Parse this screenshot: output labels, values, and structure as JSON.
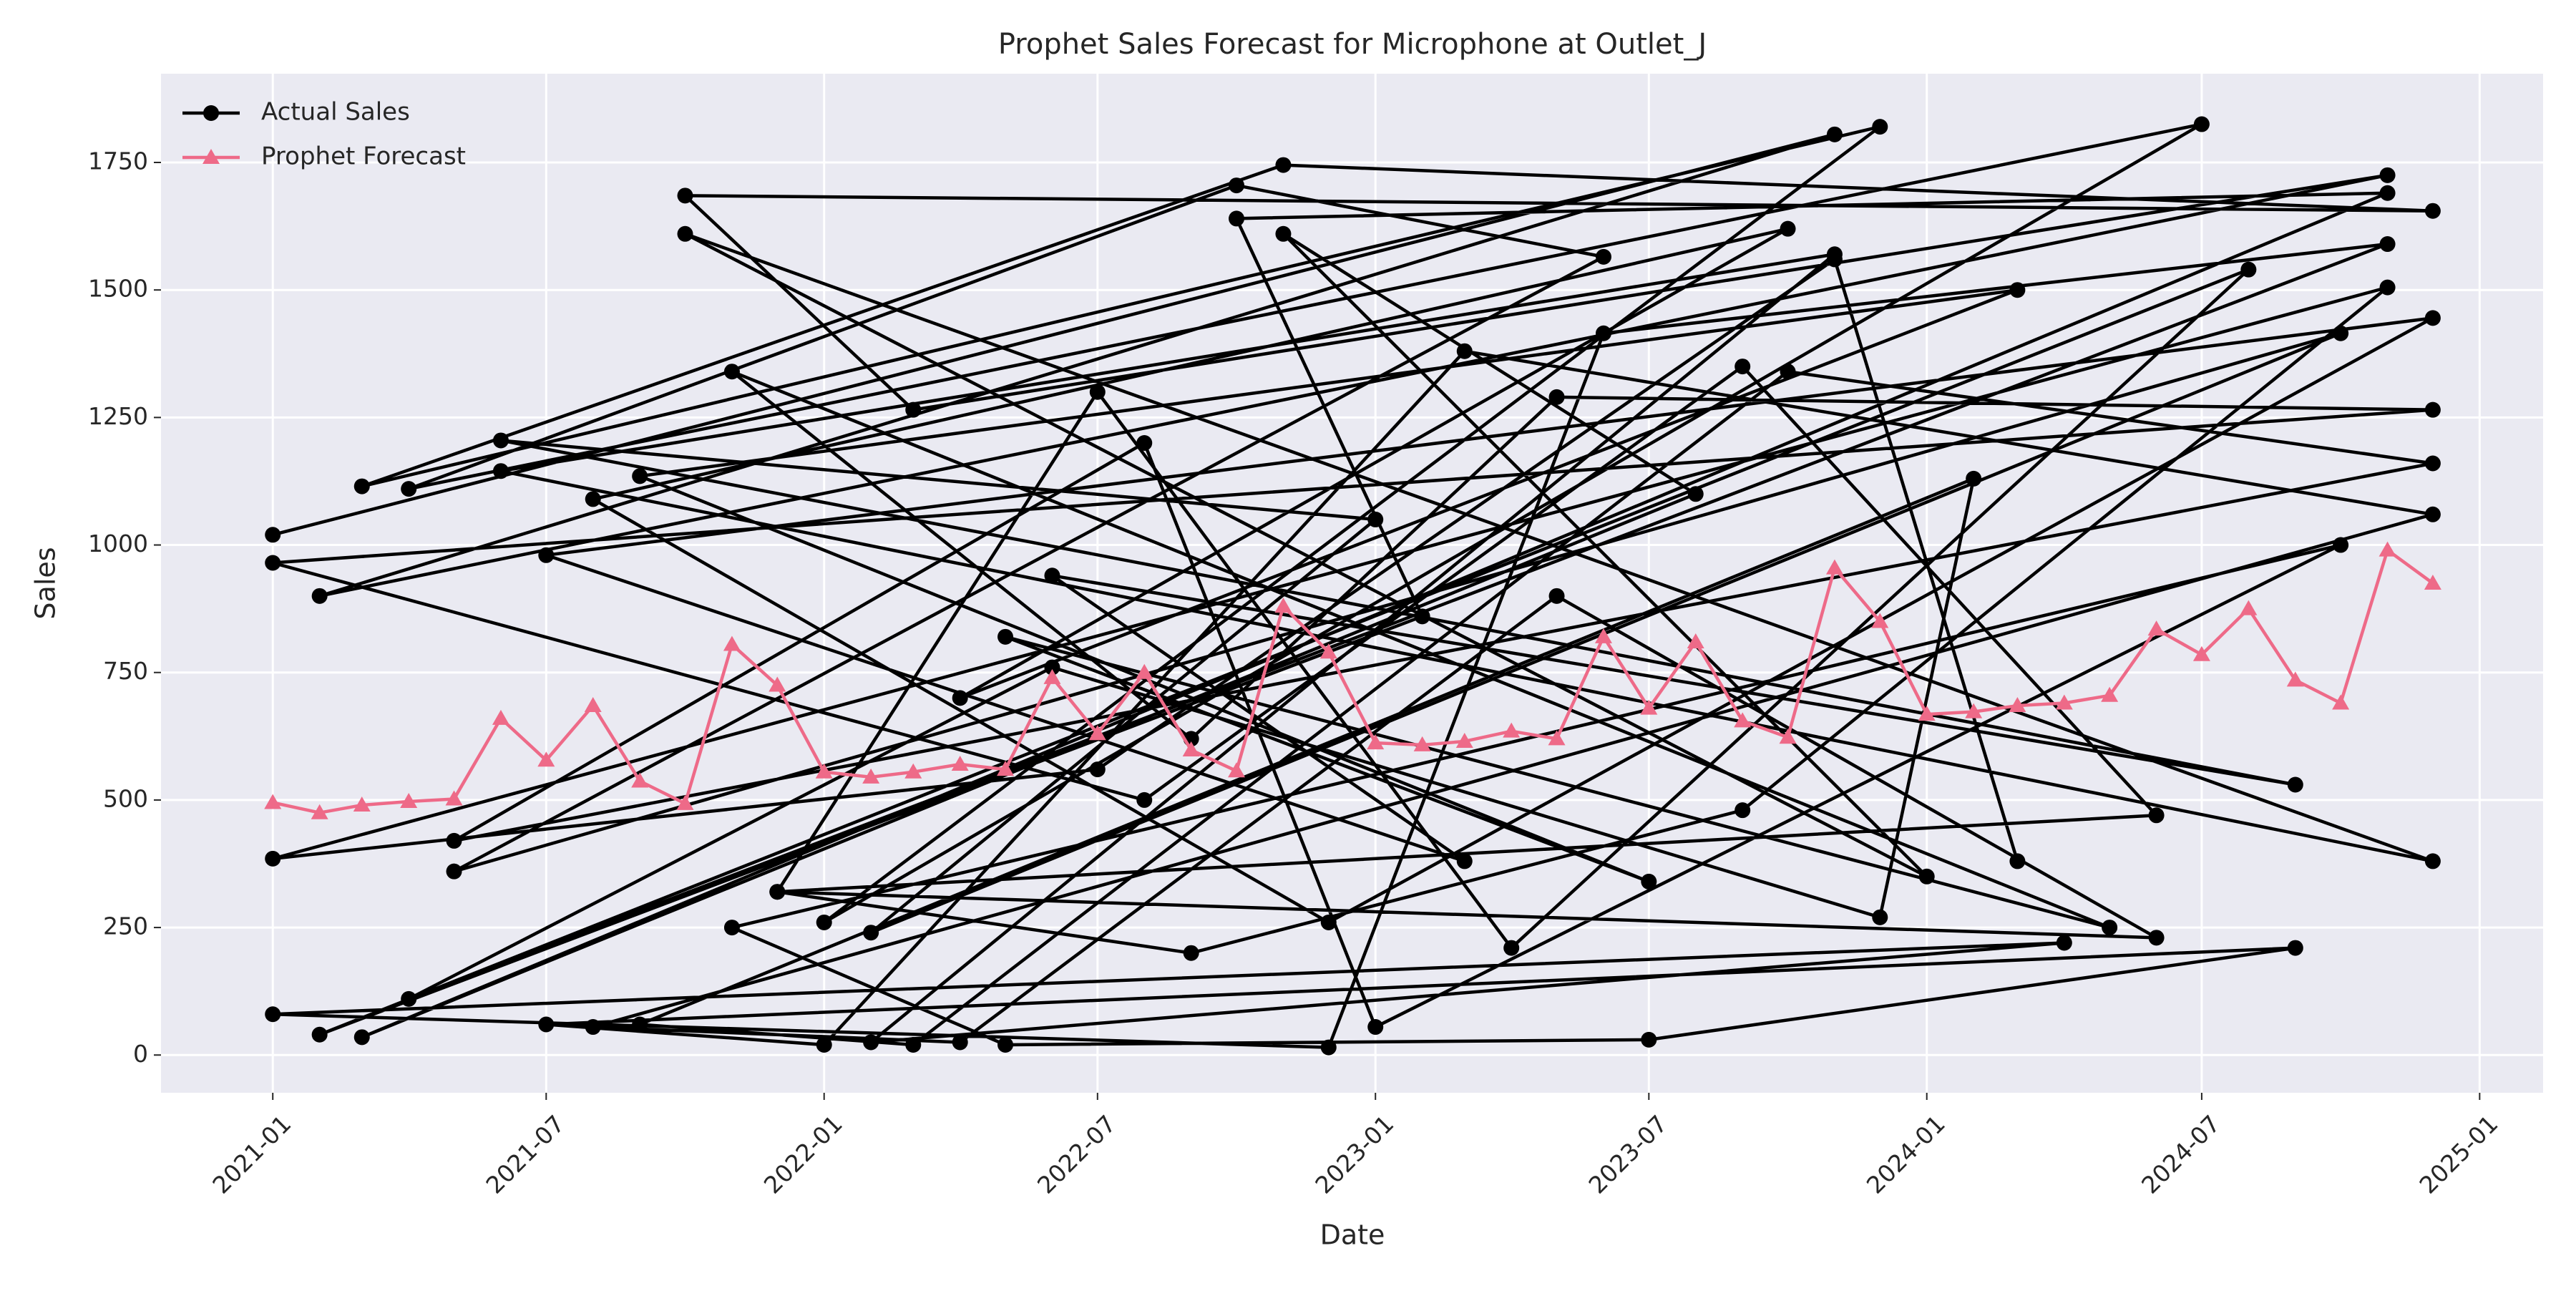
{
  "chart_data": {
    "type": "line",
    "title": "Prophet Sales Forecast for Microphone at Outlet_J",
    "x_label": "Date",
    "y_label": "Sales",
    "xlim": [
      "2020-10-19",
      "2025-02-12"
    ],
    "xticks": [
      "2021-01",
      "2021-07",
      "2022-01",
      "2022-07",
      "2023-01",
      "2023-07",
      "2024-01",
      "2024-07",
      "2025-01"
    ],
    "ylim": [
      -74,
      1924
    ],
    "yticks": [
      0,
      250,
      500,
      750,
      1000,
      1250,
      1500,
      1750
    ],
    "grid": true,
    "legend": "upper left",
    "series": [
      {
        "name": "Actual Sales",
        "color": "#000000",
        "marker": "circle",
        "x": [
          "2021-01",
          "2023-11",
          "2021-02",
          "2024-11",
          "2022-03",
          "2021-10",
          "2024-12",
          "2022-11",
          "2021-03",
          "2023-12",
          "2022-01",
          "2024-07",
          "2021-04",
          "2022-10",
          "2023-06",
          "2021-05",
          "2024-10",
          "2022-02",
          "2023-01",
          "2021-06",
          "2024-09",
          "2022-06",
          "2023-03",
          "2021-07",
          "2024-12",
          "2022-12",
          "2021-08",
          "2023-10",
          "2022-04",
          "2024-03",
          "2021-09",
          "2023-07",
          "2022-05",
          "2024-05",
          "2021-11",
          "2022-09",
          "2023-05",
          "2024-12",
          "2021-01",
          "2022-08",
          "2023-09",
          "2024-06",
          "2021-12",
          "2022-07",
          "2023-04",
          "2024-08",
          "2021-02",
          "2023-02",
          "2022-10",
          "2024-11",
          "2021-03",
          "2023-08",
          "2022-11",
          "2024-01",
          "2021-10",
          "2024-12",
          "2021-06",
          "2023-11",
          "2022-02",
          "2024-04",
          "2021-01",
          "2022-12",
          "2023-06",
          "2024-11",
          "2021-04",
          "2022-06",
          "2023-12",
          "2024-02",
          "2021-09",
          "2022-03",
          "2023-10",
          "2024-12",
          "2021-05",
          "2022-08",
          "2023-01",
          "2024-10",
          "2021-11",
          "2022-05",
          "2023-07",
          "2024-09",
          "2021-07",
          "2022-01",
          "2023-03",
          "2024-12",
          "2021-08",
          "2022-04",
          "2023-05",
          "2024-06",
          "2021-12",
          "2022-09",
          "2023-09",
          "2024-11",
          "2021-01",
          "2022-07",
          "2023-11",
          "2024-03"
        ],
        "values": [
          1020,
          1805,
          900,
          1725,
          1265,
          1685,
          1655,
          1745,
          1115,
          1820,
          260,
          1825,
          1110,
          1705,
          1565,
          360,
          1415,
          240,
          1050,
          1205,
          530,
          940,
          380,
          980,
          1445,
          260,
          1090,
          1620,
          700,
          1500,
          1135,
          340,
          820,
          250,
          1340,
          620,
          1290,
          1265,
          965,
          500,
          1350,
          470,
          320,
          1300,
          210,
          1540,
          40,
          860,
          1640,
          1690,
          35,
          1100,
          1610,
          350,
          1610,
          380,
          1145,
          1570,
          25,
          220,
          80,
          15,
          1415,
          1590,
          110,
          760,
          270,
          1130,
          60,
          20,
          1340,
          1160,
          420,
          1200,
          55,
          1000,
          250,
          20,
          30,
          210,
          60,
          20,
          1380,
          1060,
          55,
          25,
          900,
          230,
          320,
          200,
          480,
          1505,
          385,
          560,
          1560,
          380
        ]
      },
      {
        "name": "Prophet Forecast",
        "color": "#ee6a88",
        "marker": "triangle",
        "x": [
          "2021-01",
          "2021-02",
          "2021-03",
          "2021-04",
          "2021-05",
          "2021-06",
          "2021-07",
          "2021-08",
          "2021-09",
          "2021-10",
          "2021-11",
          "2021-12",
          "2022-01",
          "2022-02",
          "2022-03",
          "2022-04",
          "2022-05",
          "2022-06",
          "2022-07",
          "2022-08",
          "2022-09",
          "2022-10",
          "2022-11",
          "2022-12",
          "2023-01",
          "2023-02",
          "2023-03",
          "2023-04",
          "2023-05",
          "2023-06",
          "2023-07",
          "2023-08",
          "2023-09",
          "2023-10",
          "2023-11",
          "2023-12",
          "2024-01",
          "2024-02",
          "2024-03",
          "2024-04",
          "2024-05",
          "2024-06",
          "2024-07",
          "2024-08",
          "2024-09",
          "2024-10",
          "2024-11",
          "2024-12"
        ],
        "values": [
          495,
          475,
          490,
          497,
          502,
          660,
          578,
          685,
          537,
          493,
          805,
          725,
          555,
          545,
          555,
          570,
          560,
          740,
          630,
          750,
          598,
          557,
          880,
          790,
          612,
          608,
          615,
          635,
          620,
          820,
          680,
          810,
          655,
          623,
          955,
          850,
          668,
          673,
          685,
          690,
          705,
          835,
          785,
          875,
          735,
          690,
          990,
          925
        ]
      }
    ]
  }
}
